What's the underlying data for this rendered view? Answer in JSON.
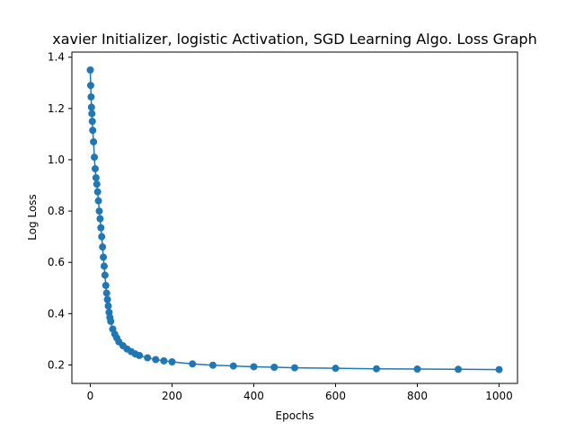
{
  "chart_data": {
    "type": "line",
    "title": "xavier Initializer, logistic Activation, SGD Learning Algo. Loss Graph",
    "xlabel": "Epochs",
    "ylabel": "Log Loss",
    "xlim": [
      -45,
      1045
    ],
    "ylim": [
      0.128,
      1.42
    ],
    "xticks": [
      0,
      200,
      400,
      600,
      800,
      1000
    ],
    "yticks": [
      0.2,
      0.4,
      0.6,
      0.8,
      1.0,
      1.2,
      1.4
    ],
    "xtick_labels": [
      "0",
      "200",
      "400",
      "600",
      "800",
      "1000"
    ],
    "ytick_labels": [
      "0.2",
      "0.4",
      "0.6",
      "0.8",
      "1.0",
      "1.2",
      "1.4"
    ],
    "grid": false,
    "series": [
      {
        "color": "#1f77b4",
        "marker": "circle",
        "x": [
          0,
          1,
          2,
          3,
          4,
          5,
          6,
          8,
          10,
          12,
          14,
          16,
          18,
          20,
          22,
          24,
          26,
          28,
          30,
          32,
          34,
          36,
          38,
          40,
          42,
          44,
          46,
          48,
          50,
          55,
          60,
          65,
          70,
          80,
          90,
          100,
          110,
          120,
          140,
          160,
          180,
          200,
          250,
          300,
          350,
          400,
          450,
          500,
          600,
          700,
          800,
          900,
          1000
        ],
        "y": [
          1.35,
          1.29,
          1.245,
          1.205,
          1.18,
          1.15,
          1.115,
          1.07,
          1.01,
          0.965,
          0.93,
          0.905,
          0.875,
          0.84,
          0.8,
          0.77,
          0.735,
          0.7,
          0.66,
          0.62,
          0.585,
          0.55,
          0.51,
          0.48,
          0.455,
          0.43,
          0.405,
          0.385,
          0.37,
          0.34,
          0.32,
          0.305,
          0.29,
          0.275,
          0.262,
          0.252,
          0.243,
          0.237,
          0.228,
          0.221,
          0.216,
          0.212,
          0.204,
          0.199,
          0.196,
          0.193,
          0.191,
          0.189,
          0.187,
          0.185,
          0.184,
          0.183,
          0.182
        ]
      }
    ]
  }
}
